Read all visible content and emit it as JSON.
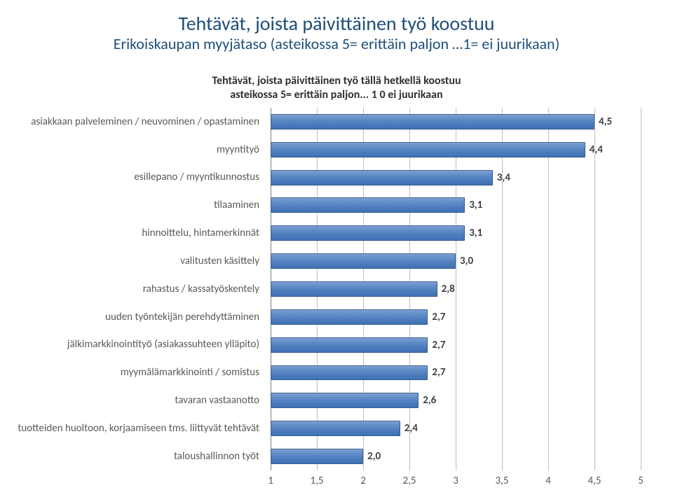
{
  "title": {
    "line1": "Tehtävät, joista päivittäinen työ koostuu",
    "line2": "Erikoiskaupan myyjätaso (asteikossa 5= erittäin paljon …1= ei juurikaan)",
    "color": "#1f4e79",
    "line1_fontsize": 28,
    "line2_fontsize": 22
  },
  "chart_title": {
    "line1": "Tehtävät, joista päivittäinen työ tällä hetkellä koostuu",
    "line2": "asteikossa 5= erittäin paljon... 1 0 ei juurikaan",
    "color": "#2f2f2f",
    "fontsize": 16,
    "weight": "bold"
  },
  "chart": {
    "type": "bar",
    "orientation": "horizontal",
    "xlim": [
      1,
      5
    ],
    "xticks": [
      1,
      1.5,
      2,
      2.5,
      3,
      3.5,
      4,
      4.5,
      5
    ],
    "xtick_labels": [
      "1",
      "1,5",
      "2",
      "2,5",
      "3",
      "3,5",
      "4",
      "4,5",
      "5"
    ],
    "grid_color": "#bfbfbf",
    "baseline_color": "#808080",
    "axis_label_color": "#595959",
    "axis_label_fontsize": 15,
    "category_label_color": "#595959",
    "category_label_fontsize": 15,
    "value_label_color": "#404040",
    "value_label_fontsize": 15,
    "value_label_weight": "bold",
    "bar_fill_top": "#7da2d4",
    "bar_fill_bottom": "#4072b4",
    "bar_border": "#385d8a",
    "bar_height_ratio": 0.55,
    "background_color": "#ffffff",
    "categories": [
      "asiakkaan palveleminen / neuvominen / opastaminen",
      "myyntityö",
      "esillepano / myyntikunnostus",
      "tilaaminen",
      "hinnoittelu, hintamerkinnät",
      "valitusten käsittely",
      "rahastus / kassatyöskentely",
      "uuden työntekijän perehdyttäminen",
      "jälkimarkkinointityö (asiakassuhteen ylläpito)",
      "myymälämarkkinointi / somistus",
      "tavaran vastaanotto",
      "tuotteiden huoltoon, korjaamiseen tms. liittyvät tehtävät",
      "taloushallinnon työt"
    ],
    "values": [
      4.5,
      4.4,
      3.4,
      3.1,
      3.1,
      3.0,
      2.8,
      2.7,
      2.7,
      2.7,
      2.6,
      2.4,
      2.0
    ],
    "value_labels": [
      "4,5",
      "4,4",
      "3,4",
      "3,1",
      "3,1",
      "3,0",
      "2,8",
      "2,7",
      "2,7",
      "2,7",
      "2,6",
      "2,4",
      "2,0"
    ]
  }
}
